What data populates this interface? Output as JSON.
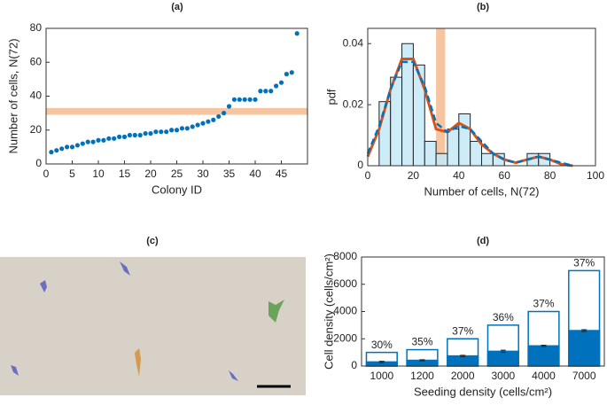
{
  "chart_data": [
    {
      "type": "scatter",
      "title": "(a)",
      "xlabel": "Colony ID",
      "ylabel": "Number of cells,  N(72)",
      "color": "#0072bd",
      "x": [
        1,
        2,
        3,
        4,
        5,
        6,
        7,
        8,
        9,
        10,
        11,
        12,
        13,
        14,
        15,
        16,
        17,
        18,
        19,
        20,
        21,
        22,
        23,
        24,
        25,
        26,
        27,
        28,
        29,
        30,
        31,
        32,
        33,
        34,
        35,
        36,
        37,
        38,
        39,
        40,
        41,
        42,
        43,
        44,
        45,
        46,
        47,
        48
      ],
      "values": [
        7,
        8,
        9,
        10,
        10,
        11,
        12,
        13,
        13,
        14,
        14,
        15,
        15,
        16,
        16,
        17,
        17,
        17,
        18,
        18,
        19,
        19,
        19,
        20,
        20,
        21,
        21,
        22,
        23,
        24,
        25,
        26,
        28,
        30,
        34,
        38,
        38,
        38,
        38,
        38,
        43,
        43,
        43,
        46,
        48,
        53,
        54,
        77
      ],
      "xlim": [
        0,
        50
      ],
      "xticks": [
        0,
        5,
        10,
        15,
        20,
        25,
        30,
        35,
        40,
        45
      ],
      "ylim": [
        0,
        80
      ],
      "yticks": [
        0,
        20,
        40,
        60,
        80
      ],
      "band": {
        "ylim": [
          29,
          33
        ],
        "color": "#f7c4a0"
      }
    },
    {
      "type": "histogram",
      "title": "(b)",
      "xlabel": "Number of cells,  N(72)",
      "ylabel": "pdf",
      "color": "#c6e9f7",
      "bins": [
        5,
        10,
        15,
        20,
        25,
        30,
        35,
        40,
        45,
        50,
        55,
        60,
        65,
        70,
        75,
        80
      ],
      "values": [
        0.021,
        0.029,
        0.04,
        0.033,
        0.008,
        0.004,
        0.012,
        0.017,
        0.008,
        0.004,
        0.004,
        0,
        0,
        0.004,
        0.004
      ],
      "lines": [
        {
          "color": "#d95319",
          "dash": false,
          "x": [
            0,
            5,
            10,
            15,
            20,
            25,
            30,
            35,
            40,
            45,
            50,
            55,
            60,
            65,
            70,
            75,
            80,
            85,
            90
          ],
          "y": [
            0.003,
            0.012,
            0.025,
            0.035,
            0.035,
            0.025,
            0.012,
            0.011,
            0.014,
            0.012,
            0.007,
            0.004,
            0.002,
            0.001,
            0.002,
            0.003,
            0.002,
            0.0005,
            0
          ]
        },
        {
          "color": "#0072bd",
          "dash": true,
          "x": [
            0,
            5,
            10,
            15,
            20,
            25,
            30,
            35,
            40,
            45,
            50,
            55,
            60,
            65,
            70,
            75,
            80,
            85,
            90
          ],
          "y": [
            0.004,
            0.013,
            0.025,
            0.034,
            0.034,
            0.026,
            0.014,
            0.011,
            0.013,
            0.012,
            0.008,
            0.004,
            0.002,
            0.001,
            0.002,
            0.003,
            0.002,
            0.001,
            0
          ]
        }
      ],
      "xlim": [
        0,
        100
      ],
      "xticks": [
        0,
        20,
        40,
        60,
        80,
        100
      ],
      "ylim": [
        0,
        0.045
      ],
      "yticks": [
        0,
        0.02,
        0.04
      ],
      "band": {
        "xlim": [
          30,
          34
        ],
        "color": "#f7c4a0"
      }
    },
    {
      "type": "image",
      "title": "(c)"
    },
    {
      "type": "bar",
      "title": "(d)",
      "xlabel": "Seeding density (cells/cm²)",
      "ylabel": "Cell density (cells/cm²)",
      "categories": [
        "1000",
        "1200",
        "2000",
        "3000",
        "4000",
        "7000"
      ],
      "series": [
        {
          "color": "#0072bd",
          "fill": "#ffffff",
          "values": [
            1000,
            1200,
            2000,
            3000,
            4000,
            7000
          ]
        },
        {
          "color": "#0072bd",
          "fill": "#0072bd",
          "values": [
            300,
            420,
            740,
            1080,
            1480,
            2600
          ],
          "errors": [
            50,
            40,
            50,
            80,
            50,
            70
          ]
        }
      ],
      "ratio": {
        "values": [
          30,
          35,
          37,
          36,
          37,
          37
        ],
        "value_labels": [
          "30%",
          "35%",
          "37%",
          "36%",
          "37%",
          "37%"
        ]
      },
      "ylim": [
        0,
        8000
      ],
      "yticks": [
        0,
        2000,
        4000,
        6000,
        8000
      ]
    }
  ]
}
